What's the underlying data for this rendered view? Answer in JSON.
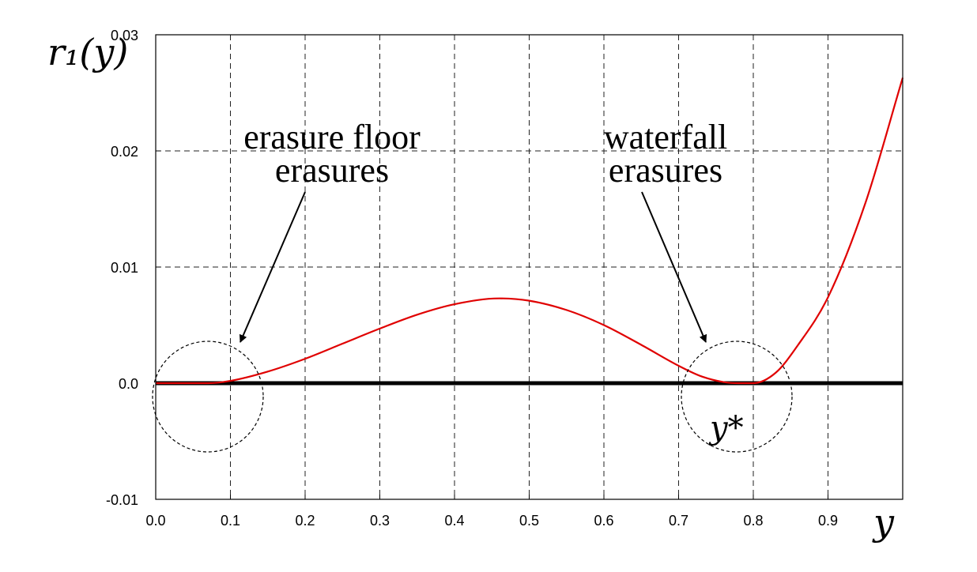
{
  "chart_data": {
    "type": "line",
    "xlabel": "y",
    "ylabel": "r₁(y)",
    "xlim": [
      0.0,
      1.0
    ],
    "ylim": [
      -0.01,
      0.03
    ],
    "x_ticks": [
      "0.0",
      "0.1",
      "0.2",
      "0.3",
      "0.4",
      "0.5",
      "0.6",
      "0.7",
      "0.8",
      "0.9"
    ],
    "y_ticks": [
      "-0.01",
      "0.0",
      "0.01",
      "0.02",
      "0.03"
    ],
    "grid": true,
    "series": [
      {
        "name": "",
        "color": "#e00000",
        "x": [
          0.0,
          0.05,
          0.07,
          0.1,
          0.15,
          0.2,
          0.25,
          0.3,
          0.35,
          0.4,
          0.46,
          0.5,
          0.55,
          0.6,
          0.65,
          0.7,
          0.73,
          0.76,
          0.78,
          0.8,
          0.83,
          0.86,
          0.9,
          0.95,
          1.0
        ],
        "values": [
          0.0,
          0.0,
          0.0,
          0.0002,
          0.001,
          0.0021,
          0.0034,
          0.0047,
          0.0059,
          0.0068,
          0.0073,
          0.0071,
          0.0063,
          0.005,
          0.0033,
          0.0015,
          0.0006,
          0.0001,
          0.0,
          0.0,
          0.0009,
          0.0033,
          0.0074,
          0.0155,
          0.0263
        ]
      },
      {
        "name": "",
        "color": "#000000",
        "x": [
          0.0,
          1.0
        ],
        "values": [
          0.0,
          0.0
        ]
      }
    ],
    "annotations": [
      {
        "lines": [
          "erasure floor",
          "erasures"
        ]
      },
      {
        "lines": [
          "waterfall",
          "erasures"
        ]
      },
      {
        "text": "y*"
      }
    ]
  }
}
